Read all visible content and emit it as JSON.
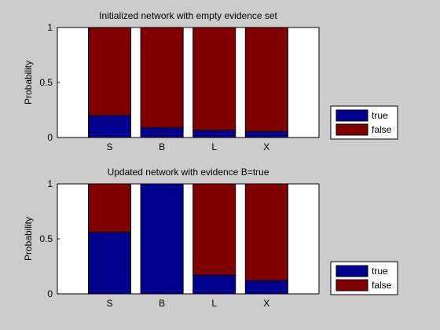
{
  "chart_data": [
    {
      "type": "bar",
      "stacked": true,
      "title": "Initialized network with empty evidence set",
      "ylabel": "Probability",
      "xlabel": "",
      "ylim": [
        0,
        1
      ],
      "yticks": [
        "0",
        "0.5",
        "1"
      ],
      "categories": [
        "S",
        "B",
        "L",
        "X"
      ],
      "series": [
        {
          "name": "true",
          "color": "#00008f",
          "values": [
            0.2,
            0.09,
            0.065,
            0.055
          ]
        },
        {
          "name": "false",
          "color": "#800000",
          "values": [
            0.8,
            0.91,
            0.935,
            0.945
          ]
        }
      ],
      "legend": "outside-bottom-right",
      "grid": false
    },
    {
      "type": "bar",
      "stacked": true,
      "title": "Updated network with evidence B=true",
      "ylabel": "Probability",
      "xlabel": "",
      "ylim": [
        0,
        1
      ],
      "yticks": [
        "0",
        "0.5",
        "1"
      ],
      "categories": [
        "S",
        "B",
        "L",
        "X"
      ],
      "series": [
        {
          "name": "true",
          "color": "#00008f",
          "values": [
            0.56,
            1.0,
            0.17,
            0.12
          ]
        },
        {
          "name": "false",
          "color": "#800000",
          "values": [
            0.44,
            0.0,
            0.83,
            0.88
          ]
        }
      ],
      "legend": "outside-bottom-right",
      "grid": false
    }
  ]
}
